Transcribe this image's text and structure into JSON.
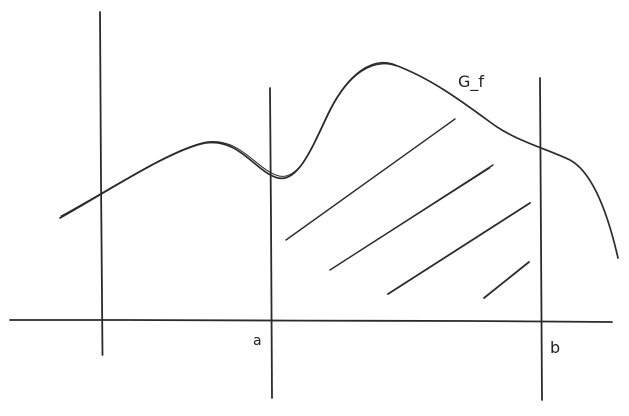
{
  "diagram": {
    "curve_label": "G_f",
    "point_a_label": "a",
    "point_b_label": "b",
    "colors": {
      "ink": "#2b2b2b",
      "background": "#ffffff"
    }
  }
}
